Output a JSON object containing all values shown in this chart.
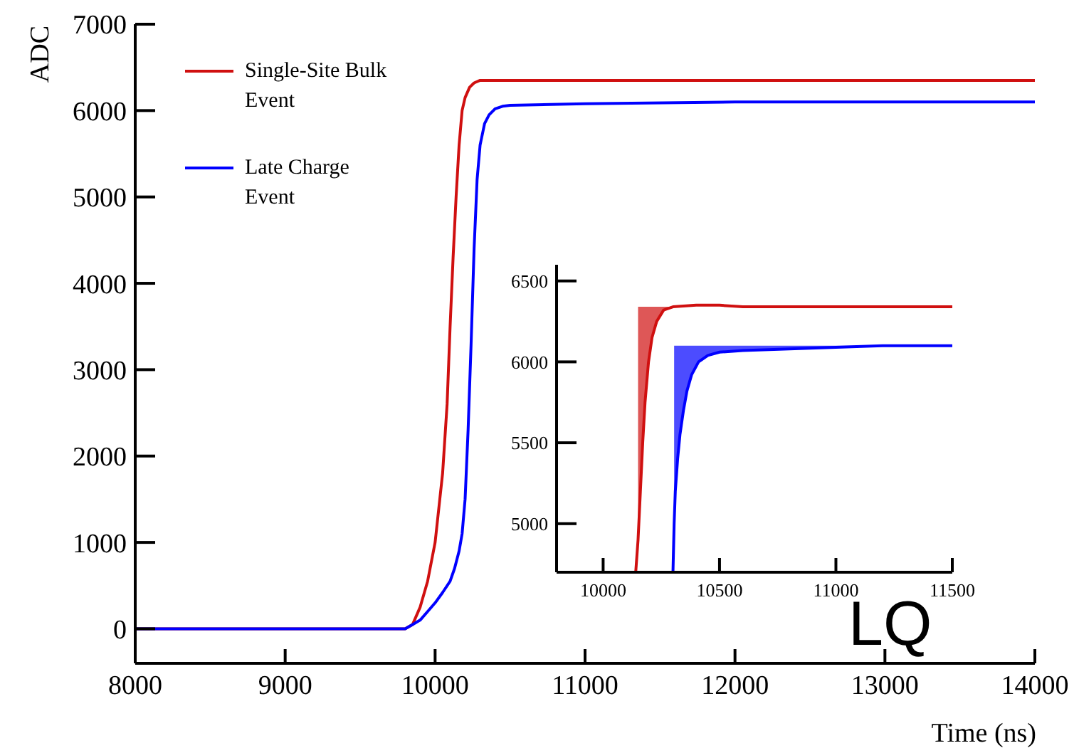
{
  "chart_data": [
    {
      "type": "line",
      "xlabel": "Time (ns)",
      "ylabel": "ADC",
      "xlim": [
        8000,
        14000
      ],
      "ylim": [
        -400,
        7000
      ],
      "xticks": [
        8000,
        9000,
        10000,
        11000,
        12000,
        13000,
        14000
      ],
      "yticks": [
        0,
        1000,
        2000,
        3000,
        4000,
        5000,
        6000,
        7000
      ],
      "legend": "top left",
      "marker": "none",
      "line_style": "solid",
      "annotations": [
        "LQ"
      ],
      "series": [
        {
          "name": "Single-Site Bulk Event",
          "color": "#d01010",
          "x": [
            8000,
            9800,
            9850,
            9900,
            9950,
            10000,
            10050,
            10080,
            10100,
            10120,
            10140,
            10160,
            10180,
            10200,
            10230,
            10260,
            10300,
            10400,
            14000
          ],
          "values": [
            0,
            0,
            50,
            250,
            550,
            1000,
            1800,
            2600,
            3500,
            4300,
            5000,
            5600,
            6000,
            6150,
            6270,
            6320,
            6350,
            6350,
            6350
          ]
        },
        {
          "name": "Late Charge Event",
          "color": "#0000ff",
          "x": [
            8000,
            9800,
            9850,
            9900,
            9950,
            10000,
            10050,
            10100,
            10130,
            10160,
            10180,
            10200,
            10220,
            10240,
            10260,
            10280,
            10300,
            10330,
            10360,
            10400,
            10450,
            10500,
            11000,
            12000,
            14000
          ],
          "values": [
            0,
            0,
            50,
            100,
            200,
            300,
            420,
            550,
            700,
            900,
            1100,
            1500,
            2300,
            3300,
            4400,
            5200,
            5600,
            5850,
            5950,
            6020,
            6050,
            6060,
            6080,
            6100,
            6100
          ]
        }
      ]
    },
    {
      "type": "line",
      "xlim": [
        9800,
        11500
      ],
      "ylim": [
        4700,
        6600
      ],
      "xticks": [
        10000,
        10500,
        11000,
        11500
      ],
      "yticks": [
        5000,
        5500,
        6000,
        6500
      ],
      "marker": "none",
      "line_style": "solid",
      "series": [
        {
          "color": "#d01010",
          "x": [
            10140,
            10150,
            10160,
            10170,
            10180,
            10195,
            10210,
            10230,
            10260,
            10300,
            10400,
            10500,
            10600,
            11000,
            11500
          ],
          "values": [
            4700,
            4900,
            5200,
            5500,
            5750,
            6000,
            6150,
            6250,
            6320,
            6340,
            6350,
            6350,
            6340,
            6340,
            6340
          ],
          "lower": [
            null,
            4900,
            5200,
            5500,
            5750,
            6000,
            6150,
            6250,
            6320,
            6340,
            null,
            null,
            null,
            null,
            null
          ],
          "upper": [
            null,
            6340,
            6340,
            6340,
            6340,
            6340,
            6340,
            6340,
            6340,
            6340,
            null,
            null,
            null,
            null,
            null
          ]
        },
        {
          "color": "#0000ff",
          "x": [
            10300,
            10305,
            10310,
            10320,
            10330,
            10345,
            10360,
            10380,
            10410,
            10450,
            10500,
            10600,
            10800,
            11000,
            11200,
            11500
          ],
          "values": [
            4700,
            5000,
            5200,
            5400,
            5550,
            5700,
            5820,
            5920,
            6000,
            6040,
            6060,
            6070,
            6080,
            6090,
            6100,
            6100
          ],
          "lower": [
            null,
            5000,
            5200,
            5400,
            5550,
            5700,
            5820,
            5920,
            6000,
            6040,
            6060,
            6070,
            6080,
            6090,
            6100,
            null
          ],
          "upper": [
            null,
            6100,
            6100,
            6100,
            6100,
            6100,
            6100,
            6100,
            6100,
            6100,
            6100,
            6100,
            6100,
            6100,
            6100,
            null
          ]
        }
      ]
    }
  ]
}
